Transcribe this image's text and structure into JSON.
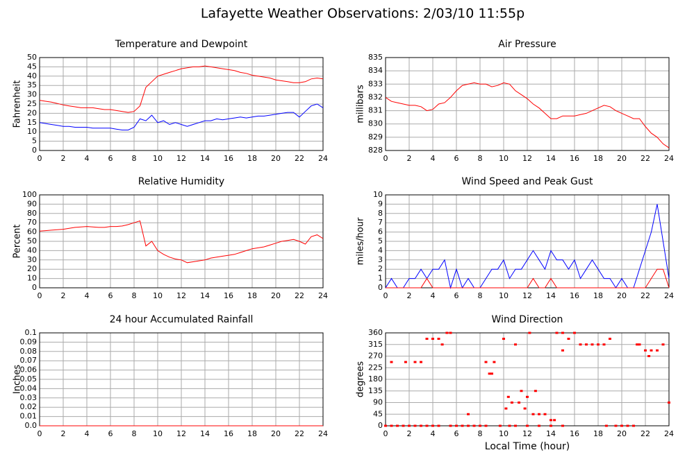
{
  "title": "Lafayette Weather Observations: 2/03/10 11:55p",
  "chart_data": [
    {
      "type": "line",
      "title": "Temperature and Dewpoint",
      "y_label": "Fahrenheit",
      "x": [
        0,
        0.5,
        1,
        1.5,
        2,
        2.5,
        3,
        3.5,
        4,
        4.5,
        5,
        5.5,
        6,
        6.5,
        7,
        7.5,
        8,
        8.5,
        9,
        9.5,
        10,
        10.5,
        11,
        11.5,
        12,
        12.5,
        13,
        13.5,
        14,
        14.5,
        15,
        15.5,
        16,
        16.5,
        17,
        17.5,
        18,
        18.5,
        19,
        19.5,
        20,
        20.5,
        21,
        21.5,
        22,
        22.5,
        23,
        23.5,
        24
      ],
      "series": [
        {
          "color": "#ff0000",
          "values": [
            27,
            26.5,
            26,
            25.3,
            24.5,
            24,
            23.5,
            23,
            23,
            23,
            22.5,
            22,
            22,
            21.5,
            21,
            20.5,
            21,
            24,
            34,
            37,
            40,
            41,
            42,
            43,
            44,
            44.5,
            45,
            45,
            45.5,
            45,
            44.5,
            44,
            43.5,
            43,
            42,
            41.5,
            40.5,
            40,
            39.5,
            39,
            38,
            37.5,
            37,
            36.5,
            36.5,
            37,
            38.5,
            39,
            38.5
          ]
        },
        {
          "color": "#0000ff",
          "values": [
            15,
            14.5,
            14,
            13.5,
            13,
            13,
            12.5,
            12.5,
            12.5,
            12,
            12,
            12,
            12,
            11.5,
            11,
            11,
            12.5,
            17,
            16,
            19,
            15,
            16,
            14,
            15,
            14,
            13,
            14,
            15,
            16,
            16,
            17,
            16.5,
            17,
            17.5,
            18,
            17.5,
            18,
            18.5,
            18.5,
            19,
            19.5,
            20,
            20.5,
            20.5,
            18,
            21,
            24,
            25,
            23
          ]
        }
      ],
      "xlim": [
        0,
        24
      ],
      "xticks": [
        0,
        2,
        4,
        6,
        8,
        10,
        12,
        14,
        16,
        18,
        20,
        22,
        24
      ],
      "ylim": [
        0,
        50
      ],
      "yticks": [
        0,
        5,
        10,
        15,
        20,
        25,
        30,
        35,
        40,
        45,
        50
      ],
      "grid": true
    },
    {
      "type": "line",
      "title": "Air Pressure",
      "y_label": "millibars",
      "x": [
        0,
        0.5,
        1,
        1.5,
        2,
        2.5,
        3,
        3.5,
        4,
        4.5,
        5,
        5.5,
        6,
        6.5,
        7,
        7.5,
        8,
        8.5,
        9,
        9.5,
        10,
        10.5,
        11,
        11.5,
        12,
        12.5,
        13,
        13.5,
        14,
        14.5,
        15,
        15.5,
        16,
        16.5,
        17,
        17.5,
        18,
        18.5,
        19,
        19.5,
        20,
        20.5,
        21,
        21.5,
        22,
        22.5,
        23,
        23.5,
        24
      ],
      "series": [
        {
          "color": "#ff0000",
          "values": [
            832,
            831.7,
            831.6,
            831.5,
            831.4,
            831.4,
            831.3,
            831,
            831.1,
            831.5,
            831.6,
            832,
            832.5,
            832.9,
            833,
            833.1,
            833,
            833,
            832.8,
            832.9,
            833.1,
            833,
            832.5,
            832.2,
            831.9,
            831.5,
            831.2,
            830.8,
            830.4,
            830.4,
            830.6,
            830.6,
            830.6,
            830.7,
            830.8,
            831,
            831.2,
            831.4,
            831.3,
            831,
            830.8,
            830.6,
            830.4,
            830.4,
            829.8,
            829.3,
            829,
            828.5,
            828.2
          ]
        }
      ],
      "xlim": [
        0,
        24
      ],
      "xticks": [
        0,
        2,
        4,
        6,
        8,
        10,
        12,
        14,
        16,
        18,
        20,
        22,
        24
      ],
      "ylim": [
        828,
        835
      ],
      "yticks": [
        828,
        829,
        830,
        831,
        832,
        833,
        834,
        835
      ],
      "grid": true
    },
    {
      "type": "line",
      "title": "Relative Humidity",
      "y_label": "Percent",
      "x": [
        0,
        0.5,
        1,
        1.5,
        2,
        2.5,
        3,
        3.5,
        4,
        4.5,
        5,
        5.5,
        6,
        6.5,
        7,
        7.5,
        8,
        8.5,
        9,
        9.5,
        10,
        10.5,
        11,
        11.5,
        12,
        12.5,
        13,
        13.5,
        14,
        14.5,
        15,
        15.5,
        16,
        16.5,
        17,
        17.5,
        18,
        18.5,
        19,
        19.5,
        20,
        20.5,
        21,
        21.5,
        22,
        22.5,
        23,
        23.5,
        24
      ],
      "series": [
        {
          "color": "#ff0000",
          "values": [
            61,
            61.5,
            62,
            62.5,
            63,
            64,
            65,
            65.5,
            66,
            65.5,
            65,
            65,
            66,
            66,
            66.5,
            68,
            70,
            72,
            45,
            50,
            40,
            36,
            33,
            31,
            30,
            27,
            28,
            29,
            30,
            32,
            33,
            34,
            35,
            36,
            38,
            40,
            42,
            43,
            44,
            46,
            48,
            50,
            51,
            52,
            50,
            47,
            55,
            57,
            53
          ]
        }
      ],
      "xlim": [
        0,
        24
      ],
      "xticks": [
        0,
        2,
        4,
        6,
        8,
        10,
        12,
        14,
        16,
        18,
        20,
        22,
        24
      ],
      "ylim": [
        0,
        100
      ],
      "yticks": [
        0,
        10,
        20,
        30,
        40,
        50,
        60,
        70,
        80,
        90,
        100
      ],
      "grid": true
    },
    {
      "type": "line",
      "title": "Wind Speed and Peak Gust",
      "y_label": "miles/hour",
      "x": [
        0,
        0.5,
        1,
        1.5,
        2,
        2.5,
        3,
        3.5,
        4,
        4.5,
        5,
        5.5,
        6,
        6.5,
        7,
        7.5,
        8,
        8.5,
        9,
        9.5,
        10,
        10.5,
        11,
        11.5,
        12,
        12.5,
        13,
        13.5,
        14,
        14.5,
        15,
        15.5,
        16,
        16.5,
        17,
        17.5,
        18,
        18.5,
        19,
        19.5,
        20,
        20.5,
        21,
        21.5,
        22,
        22.5,
        23,
        23.5,
        24
      ],
      "series": [
        {
          "color": "#0000ff",
          "values": [
            0,
            1,
            0,
            0,
            1,
            1,
            2,
            1,
            2,
            2,
            3,
            0,
            2,
            0,
            1,
            0,
            0,
            1,
            2,
            2,
            3,
            1,
            2,
            2,
            3,
            4,
            3,
            2,
            4,
            3,
            3,
            2,
            3,
            1,
            2,
            3,
            2,
            1,
            1,
            0,
            1,
            0,
            0,
            2,
            4,
            6,
            9,
            5,
            1
          ]
        },
        {
          "color": "#ff0000",
          "values": [
            0,
            0,
            0,
            0,
            0,
            0,
            0,
            1,
            0,
            0,
            0,
            0,
            0,
            0,
            0,
            0,
            0,
            0,
            0,
            0,
            0,
            0,
            0,
            0,
            0,
            1,
            0,
            0,
            1,
            0,
            0,
            0,
            0,
            0,
            0,
            0,
            0,
            0,
            0,
            0,
            0,
            0,
            0,
            0,
            0,
            1,
            2,
            2,
            0
          ]
        }
      ],
      "xlim": [
        0,
        24
      ],
      "xticks": [
        0,
        2,
        4,
        6,
        8,
        10,
        12,
        14,
        16,
        18,
        20,
        22,
        24
      ],
      "ylim": [
        0,
        10
      ],
      "yticks": [
        0,
        1,
        2,
        3,
        4,
        5,
        6,
        7,
        8,
        9,
        10
      ],
      "grid": true
    },
    {
      "type": "line",
      "title": "24 hour Accumulated Rainfall",
      "y_label": "Inches",
      "x": [
        0,
        24
      ],
      "series": [
        {
          "color": "#ff0000",
          "values": [
            0,
            0
          ]
        }
      ],
      "xlim": [
        0,
        24
      ],
      "xticks": [
        0,
        2,
        4,
        6,
        8,
        10,
        12,
        14,
        16,
        18,
        20,
        22,
        24
      ],
      "ylim": [
        0,
        0.1
      ],
      "yticks": [
        {
          "value": 0,
          "label": "0.0"
        },
        0.01,
        0.02,
        0.03,
        0.04,
        0.05,
        0.06,
        0.07,
        0.08,
        0.09,
        0.1
      ],
      "grid": true
    },
    {
      "type": "scatter",
      "title": "Wind Direction",
      "y_label": "degrees",
      "x_label": "Local Time (hour)",
      "x": [
        0,
        0.5,
        0.5,
        1,
        1.5,
        1.7,
        2,
        2.5,
        2.5,
        3,
        3,
        3.5,
        3.5,
        4,
        4,
        4.5,
        4.5,
        4.8,
        5.2,
        5.5,
        5.5,
        6,
        6.5,
        7,
        7,
        7.5,
        8,
        8.5,
        8.5,
        8.8,
        9,
        9.2,
        9.7,
        10,
        10.2,
        10.4,
        10.5,
        10.7,
        11,
        11,
        11.3,
        11.5,
        11.8,
        12,
        12,
        12.2,
        12.5,
        12.7,
        13,
        13,
        13.5,
        14,
        14,
        14.3,
        14.5,
        15,
        15,
        15,
        15.5,
        16,
        16.5,
        17,
        17.5,
        18,
        18.5,
        18.7,
        19,
        19.5,
        20,
        20.5,
        21,
        21.3,
        21.5,
        22,
        22.3,
        22.5,
        23,
        23.5,
        24
      ],
      "series": [
        {
          "color": "#ff0000",
          "values": [
            0,
            0,
            247,
            0,
            0,
            247,
            0,
            0,
            247,
            0,
            247,
            0,
            337,
            0,
            337,
            0,
            337,
            315,
            360,
            0,
            360,
            0,
            0,
            0,
            45,
            0,
            0,
            0,
            247,
            202,
            202,
            247,
            0,
            337,
            67,
            112,
            0,
            90,
            0,
            315,
            90,
            135,
            67,
            0,
            112,
            360,
            45,
            135,
            0,
            45,
            45,
            0,
            22,
            22,
            360,
            0,
            360,
            292,
            337,
            360,
            315,
            315,
            315,
            315,
            315,
            0,
            337,
            0,
            0,
            0,
            0,
            315,
            315,
            292,
            270,
            292,
            292,
            315,
            90
          ]
        }
      ],
      "xlim": [
        0,
        24
      ],
      "xticks": [
        0,
        2,
        4,
        6,
        8,
        10,
        12,
        14,
        16,
        18,
        20,
        22,
        24
      ],
      "ylim": [
        0,
        360
      ],
      "yticks": [
        0,
        45,
        90,
        135,
        180,
        225,
        270,
        315,
        360
      ],
      "grid": true
    }
  ]
}
